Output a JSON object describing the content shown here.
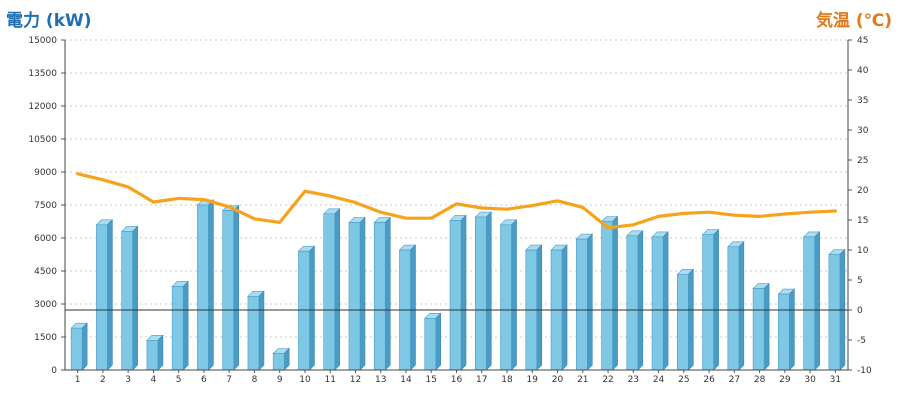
{
  "chart_data": {
    "type": "bar",
    "title": "",
    "ylabel_left": "電力 (kW)",
    "ylabel_right": "気温 (℃)",
    "ylim_left": [
      0,
      15000
    ],
    "ylim_right": [
      -10,
      45
    ],
    "yticks_left": [
      "0",
      "1500",
      "3000",
      "4500",
      "6000",
      "7500",
      "9000",
      "10500",
      "12000",
      "13500",
      "15000"
    ],
    "yticks_right": [
      "-10",
      "-5",
      "0",
      "5",
      "10",
      "15",
      "20",
      "25",
      "30",
      "35",
      "40",
      "45"
    ],
    "categories": [
      "1",
      "2",
      "3",
      "4",
      "5",
      "6",
      "7",
      "8",
      "9",
      "10",
      "11",
      "12",
      "13",
      "14",
      "15",
      "16",
      "17",
      "18",
      "19",
      "20",
      "21",
      "22",
      "23",
      "24",
      "25",
      "26",
      "27",
      "28",
      "29",
      "30",
      "31"
    ],
    "series": [
      {
        "axis": "left",
        "kind": "bar",
        "color": "#7ec8e6",
        "values": [
          1900,
          6600,
          6300,
          1350,
          3800,
          7500,
          7250,
          3350,
          750,
          5400,
          7100,
          6700,
          6700,
          5450,
          2350,
          6800,
          6950,
          6600,
          5450,
          5450,
          5950,
          6750,
          6100,
          6050,
          4350,
          6150,
          5600,
          3700,
          3450,
          6050,
          5250
        ]
      },
      {
        "axis": "right",
        "kind": "line",
        "color": "#f7a21b",
        "values": [
          22.7,
          21.7,
          20.5,
          18.0,
          18.6,
          18.4,
          17.2,
          15.2,
          14.6,
          19.8,
          19.0,
          17.9,
          16.3,
          15.3,
          15.3,
          17.7,
          17.0,
          16.8,
          17.4,
          18.2,
          17.1,
          13.7,
          14.2,
          15.6,
          16.1,
          16.3,
          15.8,
          15.6,
          16.0,
          16.3,
          16.5
        ]
      }
    ],
    "reference_line": {
      "axis": "right",
      "value": 0,
      "color": "#333333"
    },
    "grid": true,
    "legend": "none"
  }
}
